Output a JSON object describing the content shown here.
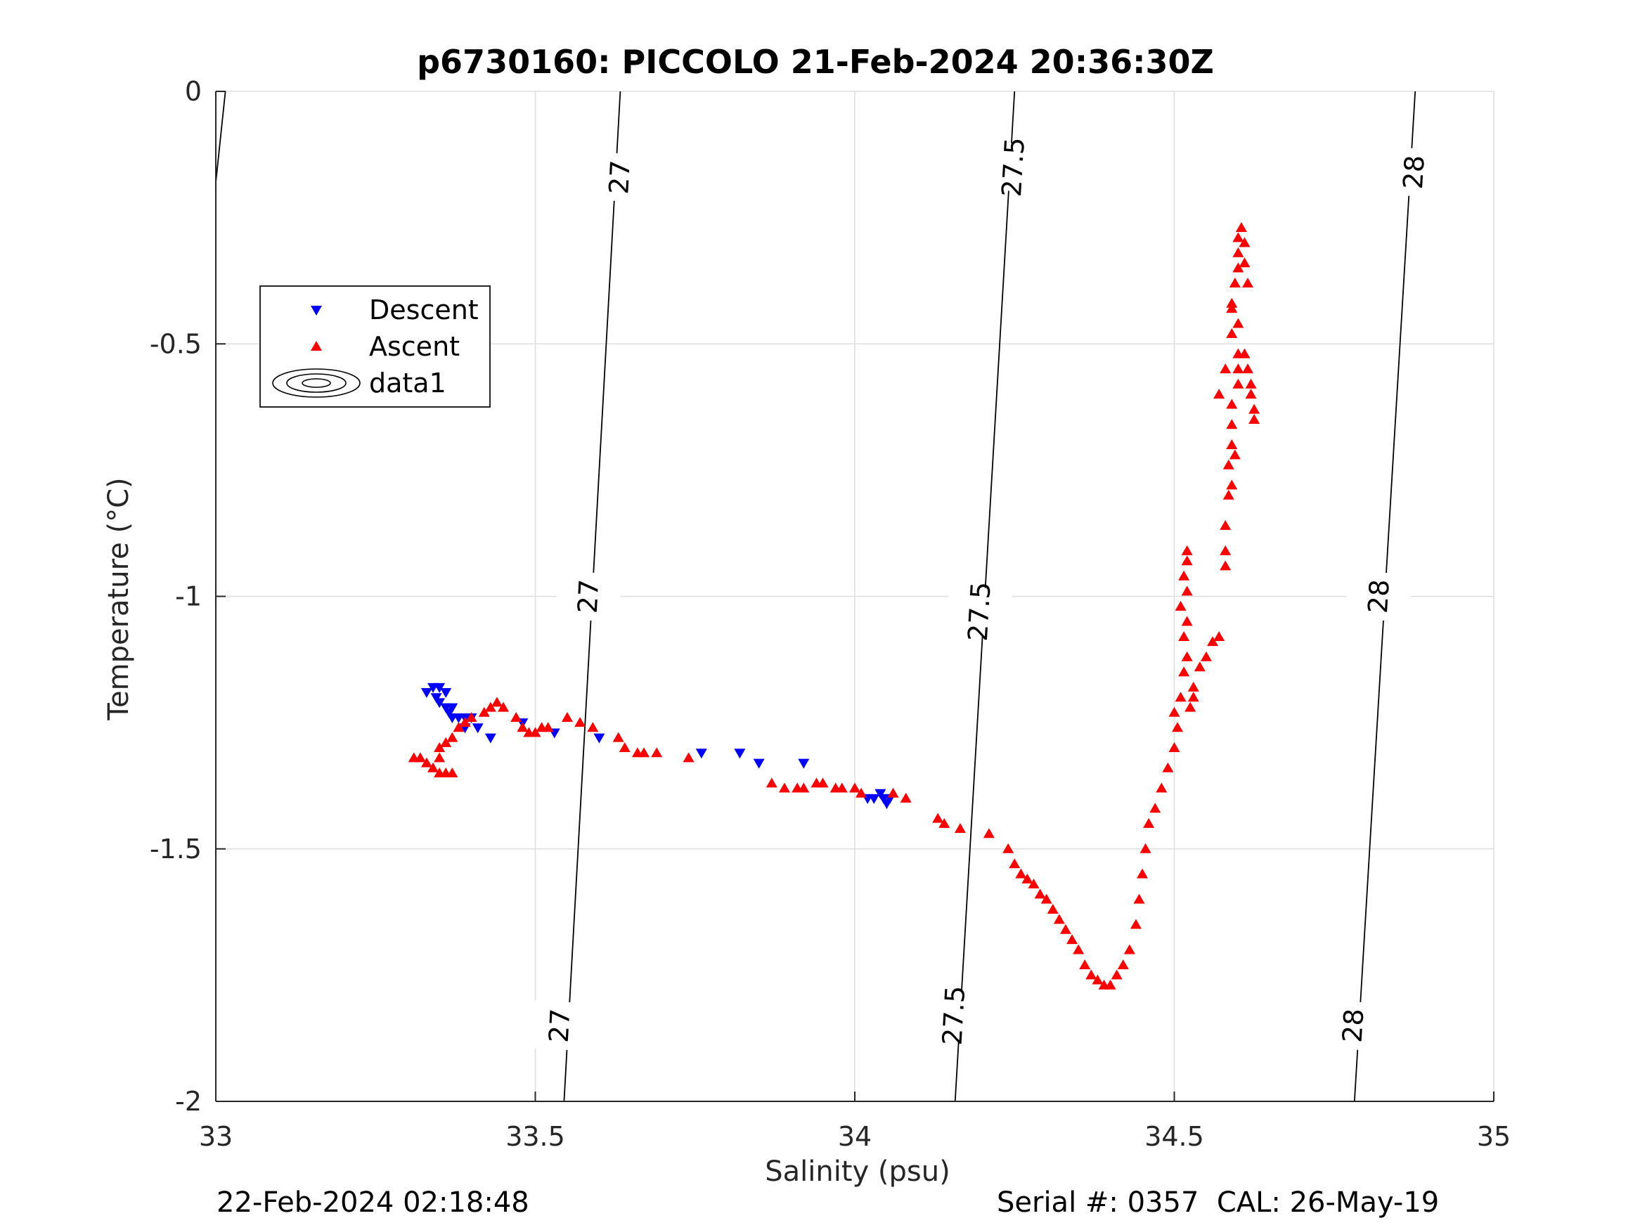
{
  "footer": {
    "timestamp": "22-Feb-2024 02:18:48",
    "serial": "Serial #: 0357  CAL: 26-May-19"
  },
  "chart_data": {
    "type": "scatter",
    "title": "p6730160: PICCOLO 21-Feb-2024 20:36:30Z",
    "xlabel": "Salinity (psu)",
    "ylabel": "Temperature (°C)",
    "xlim": [
      33,
      35
    ],
    "ylim": [
      -2,
      0
    ],
    "xticks": [
      33,
      33.5,
      34,
      34.5,
      35
    ],
    "xtick_labels": [
      "33",
      "33.5",
      "34",
      "34.5",
      "35"
    ],
    "yticks": [
      0,
      -0.5,
      -1,
      -1.5,
      -2
    ],
    "ytick_labels": [
      "0",
      "-0.5",
      "-1",
      "-1.5",
      "-2"
    ],
    "grid": true,
    "legend_position": "upper-left",
    "colors": {
      "descent": "#0000ff",
      "ascent": "#ff0000",
      "contour": "#000000",
      "grid": "#dedede"
    },
    "series": [
      {
        "name": "Descent",
        "marker": "triangle-down",
        "color": "#0000ff",
        "points": [
          [
            33.33,
            -1.19
          ],
          [
            33.34,
            -1.18
          ],
          [
            33.35,
            -1.18
          ],
          [
            33.345,
            -1.2
          ],
          [
            33.36,
            -1.19
          ],
          [
            33.35,
            -1.21
          ],
          [
            33.36,
            -1.22
          ],
          [
            33.365,
            -1.23
          ],
          [
            33.37,
            -1.22
          ],
          [
            33.37,
            -1.24
          ],
          [
            33.38,
            -1.24
          ],
          [
            33.39,
            -1.24
          ],
          [
            33.4,
            -1.24
          ],
          [
            33.39,
            -1.26
          ],
          [
            33.41,
            -1.26
          ],
          [
            33.43,
            -1.28
          ],
          [
            33.48,
            -1.25
          ],
          [
            33.53,
            -1.27
          ],
          [
            33.6,
            -1.28
          ],
          [
            33.76,
            -1.31
          ],
          [
            33.82,
            -1.31
          ],
          [
            33.85,
            -1.33
          ],
          [
            33.92,
            -1.33
          ],
          [
            34.02,
            -1.4
          ],
          [
            34.03,
            -1.4
          ],
          [
            34.04,
            -1.39
          ],
          [
            34.045,
            -1.4
          ],
          [
            34.05,
            -1.41
          ],
          [
            34.055,
            -1.4
          ]
        ]
      },
      {
        "name": "Ascent",
        "marker": "triangle-up",
        "color": "#ff0000",
        "points": [
          [
            33.31,
            -1.32
          ],
          [
            33.32,
            -1.32
          ],
          [
            33.33,
            -1.33
          ],
          [
            33.34,
            -1.34
          ],
          [
            33.35,
            -1.35
          ],
          [
            33.36,
            -1.35
          ],
          [
            33.37,
            -1.35
          ],
          [
            33.35,
            -1.32
          ],
          [
            33.35,
            -1.3
          ],
          [
            33.36,
            -1.29
          ],
          [
            33.37,
            -1.28
          ],
          [
            33.38,
            -1.26
          ],
          [
            33.39,
            -1.25
          ],
          [
            33.4,
            -1.24
          ],
          [
            33.42,
            -1.23
          ],
          [
            33.43,
            -1.22
          ],
          [
            33.44,
            -1.21
          ],
          [
            33.45,
            -1.22
          ],
          [
            33.47,
            -1.24
          ],
          [
            33.48,
            -1.26
          ],
          [
            33.49,
            -1.27
          ],
          [
            33.5,
            -1.27
          ],
          [
            33.51,
            -1.26
          ],
          [
            33.52,
            -1.26
          ],
          [
            33.55,
            -1.24
          ],
          [
            33.57,
            -1.25
          ],
          [
            33.59,
            -1.26
          ],
          [
            33.63,
            -1.28
          ],
          [
            33.64,
            -1.3
          ],
          [
            33.66,
            -1.31
          ],
          [
            33.67,
            -1.31
          ],
          [
            33.69,
            -1.31
          ],
          [
            33.74,
            -1.32
          ],
          [
            33.87,
            -1.37
          ],
          [
            33.89,
            -1.38
          ],
          [
            33.91,
            -1.38
          ],
          [
            33.92,
            -1.38
          ],
          [
            33.94,
            -1.37
          ],
          [
            33.95,
            -1.37
          ],
          [
            33.97,
            -1.38
          ],
          [
            33.98,
            -1.38
          ],
          [
            34.0,
            -1.38
          ],
          [
            34.01,
            -1.39
          ],
          [
            34.06,
            -1.39
          ],
          [
            34.08,
            -1.4
          ],
          [
            34.13,
            -1.44
          ],
          [
            34.14,
            -1.45
          ],
          [
            34.165,
            -1.46
          ],
          [
            34.21,
            -1.47
          ],
          [
            34.24,
            -1.5
          ],
          [
            34.25,
            -1.53
          ],
          [
            34.26,
            -1.55
          ],
          [
            34.27,
            -1.56
          ],
          [
            34.28,
            -1.57
          ],
          [
            34.29,
            -1.59
          ],
          [
            34.3,
            -1.6
          ],
          [
            34.31,
            -1.62
          ],
          [
            34.32,
            -1.64
          ],
          [
            34.33,
            -1.66
          ],
          [
            34.34,
            -1.68
          ],
          [
            34.35,
            -1.7
          ],
          [
            34.36,
            -1.73
          ],
          [
            34.37,
            -1.75
          ],
          [
            34.38,
            -1.76
          ],
          [
            34.39,
            -1.77
          ],
          [
            34.4,
            -1.77
          ],
          [
            34.41,
            -1.75
          ],
          [
            34.42,
            -1.73
          ],
          [
            34.43,
            -1.7
          ],
          [
            34.44,
            -1.65
          ],
          [
            34.445,
            -1.6
          ],
          [
            34.45,
            -1.55
          ],
          [
            34.455,
            -1.5
          ],
          [
            34.46,
            -1.45
          ],
          [
            34.47,
            -1.42
          ],
          [
            34.48,
            -1.38
          ],
          [
            34.49,
            -1.34
          ],
          [
            34.5,
            -1.3
          ],
          [
            34.505,
            -1.26
          ],
          [
            34.5,
            -1.23
          ],
          [
            34.51,
            -1.2
          ],
          [
            34.515,
            -1.15
          ],
          [
            34.52,
            -1.12
          ],
          [
            34.515,
            -1.08
          ],
          [
            34.52,
            -1.05
          ],
          [
            34.51,
            -1.02
          ],
          [
            34.52,
            -0.99
          ],
          [
            34.515,
            -0.96
          ],
          [
            34.52,
            -0.93
          ],
          [
            34.52,
            -0.91
          ],
          [
            34.525,
            -1.22
          ],
          [
            34.53,
            -1.2
          ],
          [
            34.53,
            -1.18
          ],
          [
            34.54,
            -1.14
          ],
          [
            34.55,
            -1.12
          ],
          [
            34.56,
            -1.09
          ],
          [
            34.57,
            -1.08
          ],
          [
            34.58,
            -0.94
          ],
          [
            34.58,
            -0.91
          ],
          [
            34.58,
            -0.86
          ],
          [
            34.585,
            -0.8
          ],
          [
            34.59,
            -0.78
          ],
          [
            34.585,
            -0.74
          ],
          [
            34.59,
            -0.7
          ],
          [
            34.59,
            -0.66
          ],
          [
            34.59,
            -0.62
          ],
          [
            34.6,
            -0.58
          ],
          [
            34.6,
            -0.55
          ],
          [
            34.6,
            -0.52
          ],
          [
            34.59,
            -0.48
          ],
          [
            34.59,
            -0.42
          ],
          [
            34.595,
            -0.38
          ],
          [
            34.6,
            -0.35
          ],
          [
            34.6,
            -0.32
          ],
          [
            34.6,
            -0.29
          ],
          [
            34.605,
            -0.27
          ],
          [
            34.61,
            -0.3
          ],
          [
            34.61,
            -0.34
          ],
          [
            34.615,
            -0.38
          ],
          [
            34.61,
            -0.52
          ],
          [
            34.615,
            -0.55
          ],
          [
            34.62,
            -0.58
          ],
          [
            34.62,
            -0.6
          ],
          [
            34.625,
            -0.63
          ],
          [
            34.625,
            -0.65
          ],
          [
            34.58,
            -0.55
          ],
          [
            34.57,
            -0.6
          ],
          [
            34.59,
            -0.43
          ],
          [
            34.6,
            -0.46
          ],
          [
            34.595,
            -0.72
          ]
        ]
      }
    ],
    "contours": [
      {
        "label": "27",
        "line": [
          [
            33.545,
            -2.0
          ],
          [
            33.633,
            0.0
          ]
        ],
        "label_at": [
          [
            33.538,
            -1.85
          ],
          [
            33.583,
            -1.0
          ],
          [
            33.632,
            -0.17
          ]
        ]
      },
      {
        "label": "27.5",
        "line": [
          [
            34.157,
            -2.0
          ],
          [
            34.25,
            0.0
          ]
        ],
        "label_at": [
          [
            34.155,
            -1.83
          ],
          [
            34.195,
            -1.03
          ],
          [
            34.248,
            -0.15
          ]
        ]
      },
      {
        "label": "28",
        "line": [
          [
            34.782,
            -2.0
          ],
          [
            34.877,
            0.0
          ]
        ],
        "label_at": [
          [
            34.78,
            -1.85
          ],
          [
            34.82,
            -1.0
          ],
          [
            34.875,
            -0.16
          ]
        ]
      },
      {
        "label": "",
        "line": [
          [
            33.0,
            -0.18
          ],
          [
            33.015,
            0.0
          ]
        ]
      }
    ],
    "legend": [
      {
        "label": "Descent",
        "marker": "triangle-down",
        "color": "#0000ff"
      },
      {
        "label": "Ascent",
        "marker": "triangle-up",
        "color": "#ff0000"
      },
      {
        "label": "data1",
        "marker": "contour"
      }
    ]
  }
}
